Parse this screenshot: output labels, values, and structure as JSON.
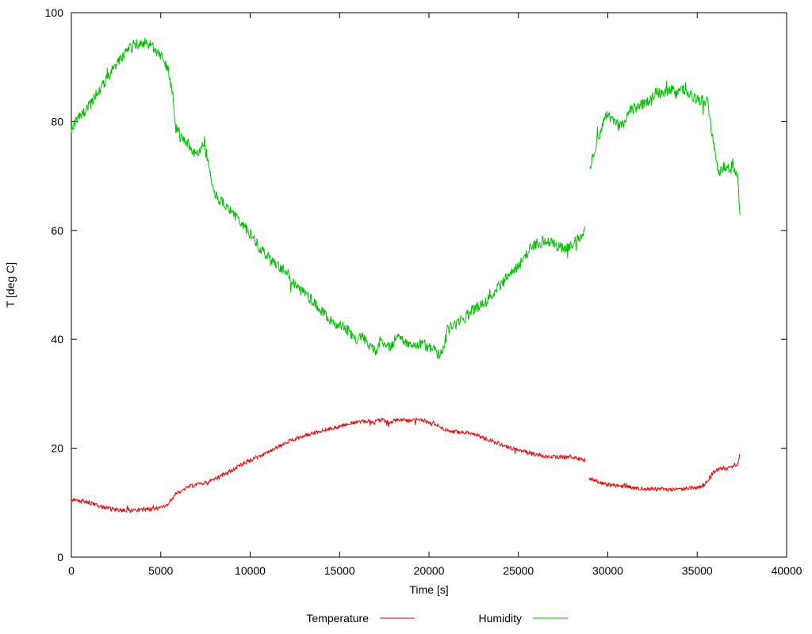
{
  "chart_data": {
    "type": "line",
    "title": "",
    "x_axis": {
      "label": "Time [s]",
      "min": 0,
      "max": 40000,
      "tick_step": 5000
    },
    "y_axis": {
      "label": "T [deg C]",
      "min": 0,
      "max": 100,
      "tick_step": 20
    },
    "grid": false,
    "legend_position": "bottom-center",
    "series": [
      {
        "name": "Temperature",
        "color": "#ee0000",
        "noise": 0.35,
        "segments": [
          [
            [
              0,
              10.5
            ],
            [
              500,
              10.3
            ],
            [
              1000,
              10.0
            ],
            [
              1500,
              9.5
            ],
            [
              2000,
              9.0
            ],
            [
              2500,
              8.7
            ],
            [
              3000,
              8.6
            ],
            [
              3500,
              8.6
            ],
            [
              4000,
              8.6
            ],
            [
              4500,
              8.8
            ],
            [
              5000,
              9.0
            ],
            [
              5300,
              9.5
            ],
            [
              5600,
              10.5
            ],
            [
              5800,
              11.5
            ],
            [
              6000,
              12.0
            ],
            [
              6300,
              12.5
            ],
            [
              6600,
              13.0
            ],
            [
              7000,
              13.3
            ],
            [
              7400,
              13.5
            ],
            [
              7800,
              14.0
            ],
            [
              8200,
              14.6
            ],
            [
              8600,
              15.3
            ],
            [
              9000,
              16.0
            ],
            [
              9400,
              16.8
            ],
            [
              9800,
              17.5
            ],
            [
              10200,
              18.1
            ],
            [
              10600,
              18.7
            ],
            [
              11000,
              19.3
            ],
            [
              11400,
              20.0
            ],
            [
              11800,
              20.7
            ],
            [
              12200,
              21.3
            ],
            [
              12600,
              21.8
            ],
            [
              13000,
              22.3
            ],
            [
              13400,
              22.7
            ],
            [
              13800,
              23.0
            ],
            [
              14200,
              23.4
            ],
            [
              14600,
              23.7
            ],
            [
              15000,
              24.0
            ],
            [
              15400,
              24.3
            ],
            [
              15800,
              24.7
            ],
            [
              16200,
              25.0
            ],
            [
              16600,
              24.8
            ],
            [
              17000,
              25.0
            ],
            [
              17400,
              25.2
            ],
            [
              17800,
              24.8
            ],
            [
              18200,
              25.2
            ],
            [
              18600,
              25.3
            ],
            [
              19000,
              25.0
            ],
            [
              19400,
              25.2
            ],
            [
              19800,
              25.0
            ],
            [
              20200,
              24.7
            ],
            [
              20600,
              24.0
            ],
            [
              21000,
              23.3
            ],
            [
              21400,
              23.0
            ],
            [
              21800,
              23.0
            ],
            [
              22200,
              22.8
            ],
            [
              22600,
              22.5
            ],
            [
              23000,
              22.0
            ],
            [
              23400,
              21.5
            ],
            [
              23800,
              21.0
            ],
            [
              24200,
              20.5
            ],
            [
              24600,
              20.0
            ],
            [
              25000,
              19.7
            ],
            [
              25400,
              19.3
            ],
            [
              25800,
              19.0
            ],
            [
              26200,
              18.7
            ],
            [
              26600,
              18.5
            ],
            [
              27000,
              18.4
            ],
            [
              27400,
              18.4
            ],
            [
              27800,
              18.3
            ],
            [
              28200,
              18.2
            ],
            [
              28750,
              17.8
            ]
          ],
          [
            [
              28950,
              14.5
            ],
            [
              29200,
              14.2
            ],
            [
              29500,
              13.8
            ],
            [
              29800,
              13.5
            ],
            [
              30100,
              13.3
            ],
            [
              30400,
              13.2
            ],
            [
              30700,
              13.0
            ],
            [
              31000,
              13.0
            ],
            [
              31500,
              12.8
            ],
            [
              32000,
              12.6
            ],
            [
              32500,
              12.5
            ],
            [
              33000,
              12.5
            ],
            [
              33500,
              12.4
            ],
            [
              34000,
              12.5
            ],
            [
              34500,
              12.6
            ],
            [
              35000,
              12.8
            ],
            [
              35300,
              13.0
            ],
            [
              35500,
              13.5
            ],
            [
              35700,
              14.5
            ],
            [
              35900,
              15.5
            ],
            [
              36100,
              16.0
            ],
            [
              36400,
              16.2
            ],
            [
              36700,
              16.3
            ],
            [
              37000,
              16.5
            ],
            [
              37200,
              17.0
            ],
            [
              37300,
              17.5
            ],
            [
              37400,
              19.0
            ]
          ]
        ]
      },
      {
        "name": "Humidity",
        "color": "#00c000",
        "noise": 1.0,
        "segments": [
          [
            [
              0,
              78.5
            ],
            [
              200,
              80.0
            ],
            [
              500,
              81.0
            ],
            [
              800,
              82.0
            ],
            [
              1000,
              83.0
            ],
            [
              1500,
              85.5
            ],
            [
              2000,
              88.0
            ],
            [
              2500,
              90.5
            ],
            [
              3000,
              92.5
            ],
            [
              3500,
              94.0
            ],
            [
              3800,
              94.5
            ],
            [
              4200,
              94.5
            ],
            [
              4500,
              94.0
            ],
            [
              5000,
              92.0
            ],
            [
              5300,
              90.5
            ],
            [
              5500,
              88.0
            ],
            [
              5700,
              84.0
            ],
            [
              5800,
              79.0
            ],
            [
              6000,
              78.0
            ],
            [
              6200,
              77.0
            ],
            [
              6500,
              76.0
            ],
            [
              6800,
              74.5
            ],
            [
              7000,
              73.5
            ],
            [
              7200,
              75.0
            ],
            [
              7400,
              76.0
            ],
            [
              7600,
              73.0
            ],
            [
              7800,
              70.0
            ],
            [
              8000,
              67.0
            ],
            [
              8200,
              66.0
            ],
            [
              8500,
              65.0
            ],
            [
              9000,
              63.0
            ],
            [
              9500,
              61.5
            ],
            [
              10000,
              59.5
            ],
            [
              10500,
              57.0
            ],
            [
              11000,
              55.0
            ],
            [
              11500,
              53.5
            ],
            [
              12000,
              52.5
            ],
            [
              12500,
              50.0
            ],
            [
              13000,
              48.5
            ],
            [
              13500,
              47.0
            ],
            [
              14000,
              45.0
            ],
            [
              14500,
              43.5
            ],
            [
              15000,
              42.5
            ],
            [
              15500,
              41.5
            ],
            [
              16000,
              39.5
            ],
            [
              16300,
              41.0
            ],
            [
              16600,
              38.5
            ],
            [
              17000,
              38.0
            ],
            [
              17400,
              39.5
            ],
            [
              17800,
              38.5
            ],
            [
              18200,
              40.5
            ],
            [
              18600,
              39.5
            ],
            [
              19000,
              39.5
            ],
            [
              19300,
              38.5
            ],
            [
              19600,
              39.5
            ],
            [
              20000,
              38.5
            ],
            [
              20300,
              38.0
            ],
            [
              20600,
              37.0
            ],
            [
              20800,
              38.0
            ],
            [
              21000,
              41.5
            ],
            [
              21300,
              42.5
            ],
            [
              21600,
              43.0
            ],
            [
              22000,
              44.0
            ],
            [
              22500,
              45.5
            ],
            [
              23000,
              46.5
            ],
            [
              23500,
              48.0
            ],
            [
              24000,
              50.0
            ],
            [
              24500,
              52.0
            ],
            [
              25000,
              53.5
            ],
            [
              25300,
              55.0
            ],
            [
              25600,
              56.5
            ],
            [
              26000,
              57.5
            ],
            [
              26300,
              58.0
            ],
            [
              26600,
              58.0
            ],
            [
              27000,
              57.5
            ],
            [
              27300,
              57.0
            ],
            [
              27600,
              56.5
            ],
            [
              27900,
              57.5
            ],
            [
              28200,
              58.0
            ],
            [
              28500,
              59.0
            ],
            [
              28750,
              60.0
            ]
          ],
          [
            [
              29000,
              71.0
            ],
            [
              29200,
              74.0
            ],
            [
              29400,
              76.0
            ],
            [
              29600,
              78.0
            ],
            [
              29800,
              80.5
            ],
            [
              30000,
              81.0
            ],
            [
              30300,
              80.5
            ],
            [
              30600,
              79.0
            ],
            [
              30900,
              79.5
            ],
            [
              31200,
              82.0
            ],
            [
              31500,
              82.5
            ],
            [
              31800,
              83.0
            ],
            [
              32100,
              83.5
            ],
            [
              32400,
              84.0
            ],
            [
              32700,
              85.5
            ],
            [
              33000,
              85.0
            ],
            [
              33300,
              85.5
            ],
            [
              33600,
              86.0
            ],
            [
              33900,
              85.5
            ],
            [
              34200,
              86.0
            ],
            [
              34500,
              85.0
            ],
            [
              34800,
              84.5
            ],
            [
              35000,
              84.0
            ],
            [
              35300,
              84.0
            ],
            [
              35600,
              83.5
            ],
            [
              35800,
              78.0
            ],
            [
              36000,
              74.0
            ],
            [
              36200,
              70.5
            ],
            [
              36400,
              71.5
            ],
            [
              36600,
              72.0
            ],
            [
              36800,
              71.0
            ],
            [
              37000,
              72.5
            ],
            [
              37100,
              71.0
            ],
            [
              37250,
              70.0
            ],
            [
              37350,
              65.0
            ],
            [
              37400,
              62.0
            ]
          ]
        ]
      }
    ]
  }
}
